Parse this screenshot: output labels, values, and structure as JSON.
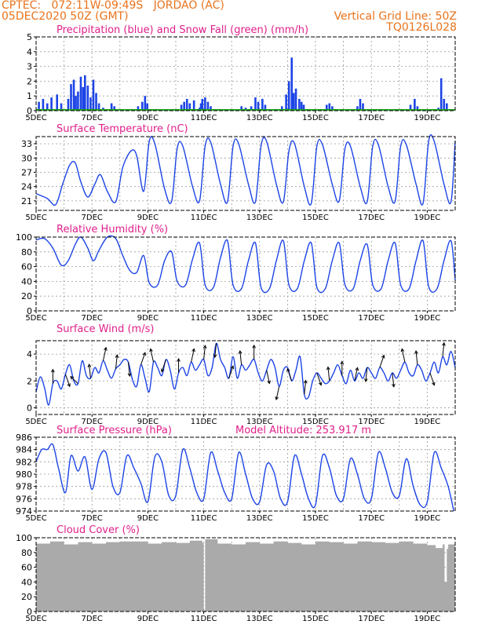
{
  "header": {
    "line1": "CPTEC:   072:11W-09:49S   JORDAO (AC)",
    "line2": "05DEC2020 50Z (GMT)",
    "grid_note": "Vertical Grid Line: 50Z",
    "code": "TQ0126L028"
  },
  "colors": {
    "header": "#e8731c",
    "title": "#e0208c",
    "series": "#1c44e6",
    "snow": "#1fa11f",
    "cloud": "#aaaaaa",
    "arrow": "#000000",
    "grid": "#9a9a9a"
  },
  "x_axis": {
    "day_start": 5,
    "day_end": 20,
    "tick_labels": [
      "5DEC",
      "7DEC",
      "9DEC",
      "11DEC",
      "13DEC",
      "15DEC",
      "17DEC",
      "19DEC"
    ],
    "tick_days": [
      5,
      7,
      9,
      11,
      13,
      15,
      17,
      19
    ]
  },
  "chart_data": [
    {
      "type": "bar",
      "title": "Precipitation (blue) and Snow Fall (green) (mm/h)",
      "ylim": [
        0,
        5
      ],
      "yticks": [
        0,
        1,
        2,
        3,
        4,
        5
      ],
      "snow_value": 0,
      "series": [
        {
          "name": "Precipitation",
          "bars": [
            [
              5.1,
              0.6
            ],
            [
              5.25,
              0.8
            ],
            [
              5.4,
              0.5
            ],
            [
              5.55,
              0.9
            ],
            [
              5.75,
              1.1
            ],
            [
              5.9,
              0.5
            ],
            [
              6.15,
              0.8
            ],
            [
              6.25,
              1.8
            ],
            [
              6.35,
              2.1
            ],
            [
              6.42,
              1.0
            ],
            [
              6.5,
              1.3
            ],
            [
              6.6,
              2.3
            ],
            [
              6.68,
              1.6
            ],
            [
              6.75,
              2.4
            ],
            [
              6.85,
              1.7
            ],
            [
              6.95,
              0.9
            ],
            [
              7.05,
              2.1
            ],
            [
              7.15,
              1.2
            ],
            [
              7.25,
              0.5
            ],
            [
              7.4,
              0.2
            ],
            [
              7.7,
              0.5
            ],
            [
              7.8,
              0.3
            ],
            [
              8.65,
              0.3
            ],
            [
              8.8,
              0.6
            ],
            [
              8.9,
              1.0
            ],
            [
              8.98,
              0.5
            ],
            [
              10.2,
              0.4
            ],
            [
              10.3,
              0.6
            ],
            [
              10.4,
              0.8
            ],
            [
              10.5,
              0.5
            ],
            [
              10.65,
              0.7
            ],
            [
              10.85,
              0.2
            ],
            [
              10.9,
              0.5
            ],
            [
              10.95,
              0.8
            ],
            [
              11.05,
              0.9
            ],
            [
              11.15,
              0.6
            ],
            [
              11.25,
              0.3
            ],
            [
              12.35,
              0.3
            ],
            [
              12.5,
              0.2
            ],
            [
              12.7,
              0.3
            ],
            [
              12.85,
              0.9
            ],
            [
              12.95,
              0.6
            ],
            [
              13.1,
              0.8
            ],
            [
              13.2,
              0.4
            ],
            [
              13.8,
              0.3
            ],
            [
              13.95,
              1.1
            ],
            [
              14.05,
              2.0
            ],
            [
              14.15,
              3.6
            ],
            [
              14.22,
              1.2
            ],
            [
              14.3,
              1.5
            ],
            [
              14.42,
              0.8
            ],
            [
              14.5,
              0.6
            ],
            [
              14.58,
              0.4
            ],
            [
              15.4,
              0.4
            ],
            [
              15.5,
              0.5
            ],
            [
              15.6,
              0.3
            ],
            [
              16.5,
              0.3
            ],
            [
              16.6,
              0.8
            ],
            [
              16.7,
              0.5
            ],
            [
              18.4,
              0.4
            ],
            [
              18.55,
              0.8
            ],
            [
              18.65,
              0.3
            ],
            [
              19.4,
              0.2
            ],
            [
              19.5,
              2.2
            ],
            [
              19.6,
              0.8
            ],
            [
              19.7,
              0.5
            ]
          ]
        }
      ]
    },
    {
      "type": "line",
      "title": "Surface Temperature (nC)",
      "ylim": [
        19,
        34.5
      ],
      "yticks": [
        21,
        24,
        27,
        30,
        33
      ],
      "series": [
        {
          "name": "Temperature",
          "x": [
            5.0,
            5.4,
            5.7,
            5.95,
            6.2,
            6.4,
            6.6,
            6.85,
            7.1,
            7.3,
            7.55,
            7.85,
            8.1,
            8.4,
            8.6,
            8.85,
            9.05,
            9.25,
            9.6,
            9.85,
            10.05,
            10.25,
            10.6,
            10.85,
            11.05,
            11.25,
            11.6,
            11.85,
            12.05,
            12.25,
            12.6,
            12.85,
            13.05,
            13.25,
            13.6,
            13.85,
            14.05,
            14.25,
            14.6,
            14.85,
            15.05,
            15.25,
            15.6,
            15.85,
            16.05,
            16.25,
            16.6,
            16.85,
            17.05,
            17.25,
            17.6,
            17.85,
            18.05,
            18.25,
            18.6,
            18.85,
            19.05,
            19.25,
            19.6,
            19.85,
            20.0
          ],
          "y": [
            22.5,
            21.5,
            20.2,
            24.5,
            28.5,
            29.0,
            25.0,
            21.8,
            24.5,
            26.5,
            23.0,
            20.8,
            28.0,
            31.5,
            30.5,
            23.0,
            33.5,
            33.0,
            23.5,
            20.9,
            32.0,
            32.5,
            24.0,
            21.0,
            32.5,
            33.3,
            24.5,
            20.8,
            32.5,
            33.0,
            24.5,
            20.8,
            32.5,
            33.5,
            24.5,
            20.8,
            31.5,
            33.0,
            24.0,
            20.5,
            32.5,
            32.8,
            24.5,
            21.0,
            31.8,
            32.5,
            24.0,
            20.8,
            32.5,
            32.8,
            24.0,
            20.9,
            32.5,
            32.8,
            24.5,
            20.5,
            33.5,
            33.5,
            24.5,
            20.8,
            33.5
          ]
        }
      ]
    },
    {
      "type": "line",
      "title": "Relative Humidity (%)",
      "ylim": [
        0,
        100
      ],
      "yticks": [
        0,
        20,
        40,
        60,
        80,
        100
      ],
      "series": [
        {
          "name": "Humidity",
          "x": [
            5.0,
            5.3,
            5.6,
            5.9,
            6.15,
            6.4,
            6.6,
            6.85,
            7.05,
            7.25,
            7.55,
            7.85,
            8.1,
            8.35,
            8.6,
            8.85,
            9.05,
            9.35,
            9.6,
            9.85,
            10.05,
            10.35,
            10.6,
            10.85,
            11.05,
            11.35,
            11.6,
            11.85,
            12.05,
            12.35,
            12.6,
            12.85,
            13.05,
            13.35,
            13.6,
            13.85,
            14.05,
            14.35,
            14.6,
            14.85,
            15.05,
            15.35,
            15.6,
            15.85,
            16.05,
            16.35,
            16.6,
            16.85,
            17.05,
            17.35,
            17.6,
            17.85,
            18.05,
            18.35,
            18.6,
            18.85,
            19.05,
            19.35,
            19.6,
            19.85,
            20.0
          ],
          "y": [
            96,
            98,
            85,
            62,
            68,
            90,
            100,
            85,
            68,
            82,
            100,
            98,
            75,
            55,
            52,
            75,
            38,
            35,
            68,
            80,
            40,
            35,
            70,
            92,
            35,
            32,
            72,
            95,
            35,
            30,
            68,
            92,
            32,
            30,
            68,
            95,
            35,
            30,
            68,
            92,
            32,
            30,
            68,
            92,
            36,
            30,
            68,
            90,
            35,
            30,
            68,
            92,
            35,
            30,
            68,
            95,
            33,
            30,
            68,
            95,
            42
          ]
        }
      ]
    },
    {
      "type": "line",
      "title": "Surface Wind (m/s)",
      "ylim": [
        -0.5,
        5
      ],
      "yticks": [
        0,
        2,
        4
      ],
      "series": [
        {
          "name": "Wind speed",
          "x": [
            5.0,
            5.15,
            5.3,
            5.45,
            5.6,
            5.75,
            5.9,
            6.05,
            6.2,
            6.35,
            6.5,
            6.65,
            6.8,
            6.95,
            7.1,
            7.25,
            7.4,
            7.55,
            7.7,
            7.85,
            8.0,
            8.15,
            8.3,
            8.45,
            8.6,
            8.75,
            8.9,
            9.05,
            9.2,
            9.35,
            9.5,
            9.65,
            9.8,
            9.95,
            10.1,
            10.25,
            10.4,
            10.55,
            10.7,
            10.85,
            11.0,
            11.15,
            11.3,
            11.45,
            11.6,
            11.75,
            11.9,
            12.05,
            12.2,
            12.35,
            12.5,
            12.65,
            12.8,
            12.95,
            13.1,
            13.25,
            13.4,
            13.55,
            13.7,
            13.85,
            14.0,
            14.15,
            14.3,
            14.45,
            14.6,
            14.75,
            14.9,
            15.05,
            15.2,
            15.35,
            15.5,
            15.65,
            15.8,
            15.95,
            16.1,
            16.25,
            16.4,
            16.55,
            16.7,
            16.85,
            17.0,
            17.15,
            17.3,
            17.45,
            17.6,
            17.75,
            17.9,
            18.05,
            18.2,
            18.35,
            18.5,
            18.65,
            18.8,
            18.95,
            19.1,
            19.25,
            19.4,
            19.55,
            19.7,
            19.85,
            20.0
          ],
          "y": [
            1.2,
            2.3,
            1.5,
            0.2,
            1.8,
            2.0,
            1.4,
            2.5,
            3.2,
            2.0,
            1.8,
            3.5,
            2.4,
            2.2,
            3.0,
            2.6,
            3.5,
            2.8,
            2.2,
            2.9,
            3.2,
            3.6,
            3.4,
            2.1,
            1.6,
            3.2,
            2.2,
            1.2,
            3.4,
            3.0,
            2.4,
            3.6,
            2.8,
            1.4,
            2.6,
            3.0,
            2.4,
            3.4,
            2.8,
            3.2,
            3.6,
            2.4,
            3.0,
            4.8,
            3.6,
            3.0,
            2.2,
            3.8,
            2.2,
            3.2,
            2.8,
            3.2,
            3.6,
            2.6,
            2.0,
            2.8,
            3.6,
            3.0,
            1.6,
            2.8,
            3.0,
            2.0,
            2.8,
            3.8,
            1.0,
            0.8,
            2.0,
            2.6,
            2.2,
            1.8,
            2.0,
            2.6,
            3.2,
            2.4,
            1.8,
            2.8,
            2.0,
            2.6,
            2.2,
            3.0,
            2.6,
            2.2,
            3.0,
            2.6,
            2.0,
            2.6,
            2.2,
            2.8,
            3.4,
            2.6,
            2.4,
            3.2,
            2.8,
            2.0,
            2.6,
            3.4,
            2.6,
            3.8,
            3.2,
            4.2,
            3.0
          ]
        }
      ]
    },
    {
      "type": "line",
      "title": "Surface Pressure (hPa)",
      "subtitle": "Model Altitude: 253.917 m",
      "ylim": [
        974,
        986
      ],
      "yticks": [
        974,
        976,
        978,
        980,
        982,
        984,
        986
      ],
      "series": [
        {
          "name": "Pressure",
          "x": [
            5.0,
            5.2,
            5.4,
            5.6,
            5.8,
            6.05,
            6.25,
            6.5,
            6.75,
            7.0,
            7.25,
            7.5,
            7.75,
            8.0,
            8.25,
            8.5,
            8.75,
            9.0,
            9.25,
            9.5,
            9.75,
            10.0,
            10.25,
            10.5,
            10.75,
            11.0,
            11.25,
            11.5,
            11.75,
            12.0,
            12.25,
            12.5,
            12.75,
            13.0,
            13.25,
            13.5,
            13.75,
            14.0,
            14.25,
            14.5,
            14.75,
            15.0,
            15.25,
            15.5,
            15.75,
            16.0,
            16.25,
            16.5,
            16.75,
            17.0,
            17.25,
            17.5,
            17.75,
            18.0,
            18.25,
            18.5,
            18.75,
            19.0,
            19.25,
            19.5,
            19.75,
            19.95
          ],
          "y": [
            982.0,
            984.0,
            984.0,
            984.8,
            981.0,
            977.0,
            983.0,
            980.5,
            982.8,
            977.5,
            982.5,
            983.5,
            978.0,
            977.0,
            983.0,
            981.0,
            978.5,
            975.5,
            982.8,
            982.0,
            976.5,
            976.5,
            984.0,
            981.0,
            977.0,
            976.0,
            983.5,
            980.5,
            977.0,
            976.0,
            983.5,
            980.0,
            976.0,
            975.5,
            981.5,
            980.5,
            976.0,
            975.5,
            983.0,
            980.0,
            976.0,
            975.0,
            983.0,
            981.0,
            976.5,
            976.0,
            982.5,
            980.0,
            976.0,
            976.0,
            983.5,
            981.0,
            977.0,
            976.5,
            982.5,
            978.0,
            975.0,
            975.5,
            983.5,
            981.0,
            978.0,
            974.0
          ]
        }
      ]
    },
    {
      "type": "area",
      "title": "Cloud Cover (%)",
      "ylim": [
        0,
        100
      ],
      "yticks": [
        0,
        20,
        40,
        60,
        80,
        100
      ],
      "series": [
        {
          "name": "Cloud cover",
          "x": [
            5.0,
            5.5,
            6.0,
            6.5,
            7.0,
            7.5,
            8.0,
            8.5,
            9.0,
            9.5,
            10.0,
            10.5,
            10.95,
            11.0,
            11.05,
            11.5,
            12.0,
            12.5,
            13.0,
            13.5,
            14.0,
            14.5,
            15.0,
            15.5,
            16.0,
            16.5,
            17.0,
            17.5,
            18.0,
            18.5,
            19.0,
            19.3,
            19.55,
            19.62,
            19.7,
            19.75,
            20.0
          ],
          "y": [
            92,
            95,
            91,
            94,
            92,
            94,
            95,
            95,
            92,
            94,
            93,
            96,
            93,
            2,
            98,
            92,
            91,
            94,
            92,
            95,
            93,
            91,
            95,
            94,
            92,
            95,
            94,
            93,
            95,
            92,
            90,
            86,
            91,
            40,
            85,
            91,
            89
          ]
        }
      ]
    }
  ]
}
